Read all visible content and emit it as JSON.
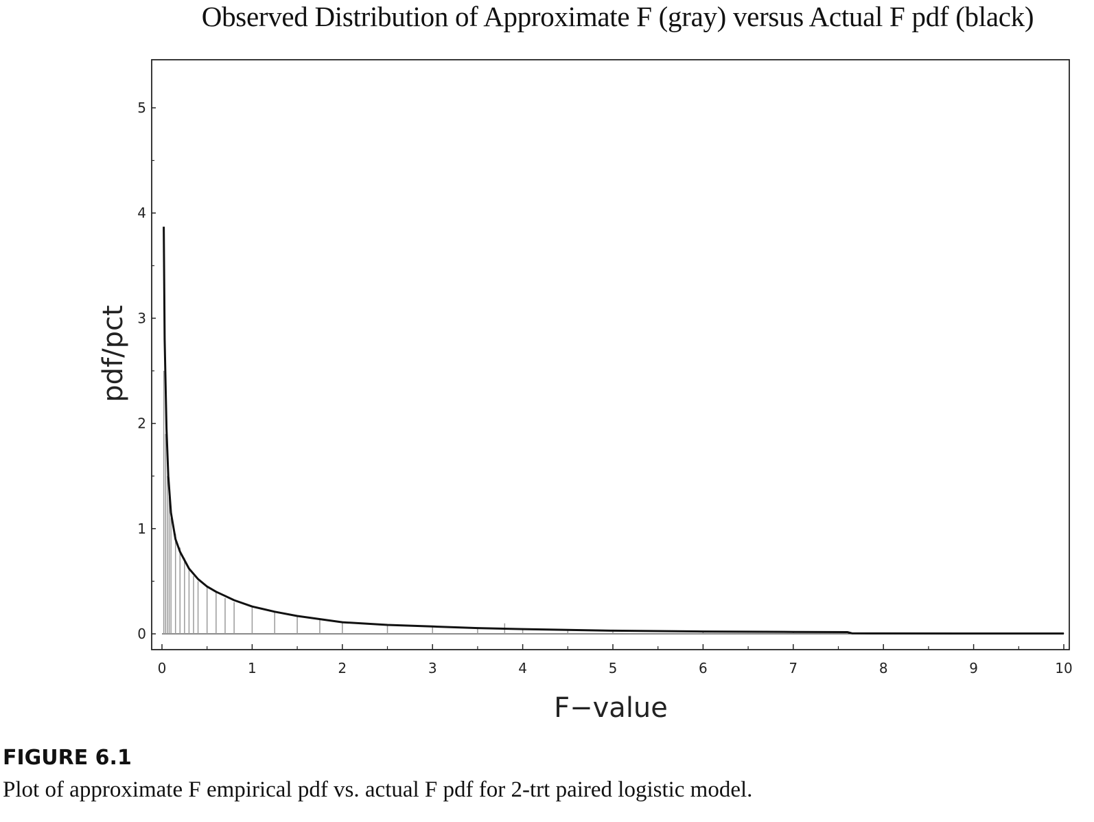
{
  "chart_data": {
    "type": "bar",
    "title": "Observed Distribution of Approximate F (gray) versus Actual F pdf (black)",
    "xlabel": "F−value",
    "ylabel": "pdf/pct",
    "xlim": [
      0,
      10
    ],
    "ylim": [
      0,
      5.4
    ],
    "x_ticks": [
      0,
      1,
      2,
      3,
      4,
      5,
      6,
      7,
      8,
      9,
      10
    ],
    "x_tick_labels": [
      "0",
      "1",
      "2",
      "3",
      "4",
      "5",
      "6",
      "7",
      "8",
      "9",
      "10"
    ],
    "y_ticks": [
      0,
      1,
      2,
      3,
      4,
      5
    ],
    "y_tick_labels": [
      "0",
      "1",
      "2",
      "3",
      "4",
      "5"
    ],
    "grid": false,
    "legend": "none",
    "series": [
      {
        "type": "bar",
        "color": "#9a9a9a",
        "bin_width": 0.02,
        "x": [
          0.02,
          0.04,
          0.06,
          0.08,
          0.1,
          0.15,
          0.2,
          0.25,
          0.3,
          0.35,
          0.4,
          0.5,
          0.6,
          0.7,
          0.8,
          1.0,
          1.25,
          1.5,
          1.75,
          2.0,
          2.5,
          3.0,
          3.5,
          3.8,
          4.0,
          4.5,
          5.0,
          6.0,
          7.0,
          7.6,
          8.0,
          9.0,
          10.0
        ],
        "values": [
          2.5,
          1.9,
          1.5,
          1.3,
          1.1,
          0.95,
          0.82,
          0.72,
          0.62,
          0.55,
          0.5,
          0.45,
          0.4,
          0.34,
          0.3,
          0.25,
          0.21,
          0.17,
          0.14,
          0.12,
          0.09,
          0.07,
          0.055,
          0.1,
          0.045,
          0.04,
          0.035,
          0.025,
          0.02,
          0.02,
          0.01,
          0.012,
          0.008
        ]
      },
      {
        "type": "line",
        "color": "#111111",
        "x": [
          0.02,
          0.03,
          0.05,
          0.07,
          0.1,
          0.15,
          0.2,
          0.3,
          0.4,
          0.5,
          0.6,
          0.7,
          0.8,
          1.0,
          1.25,
          1.5,
          2.0,
          2.5,
          3.0,
          3.5,
          4.0,
          5.0,
          6.0,
          7.0,
          7.6,
          7.65,
          8.0,
          9.0,
          10.0
        ],
        "values": [
          3.87,
          2.8,
          1.95,
          1.5,
          1.15,
          0.9,
          0.78,
          0.62,
          0.52,
          0.45,
          0.4,
          0.36,
          0.32,
          0.26,
          0.21,
          0.17,
          0.11,
          0.085,
          0.07,
          0.055,
          0.045,
          0.03,
          0.022,
          0.018,
          0.016,
          0.005,
          0.004,
          0.003,
          0.003
        ]
      }
    ]
  },
  "caption": {
    "label": "FIGURE 6.1",
    "text": "Plot of approximate F empirical pdf vs. actual F pdf for 2-trt paired logistic model."
  }
}
